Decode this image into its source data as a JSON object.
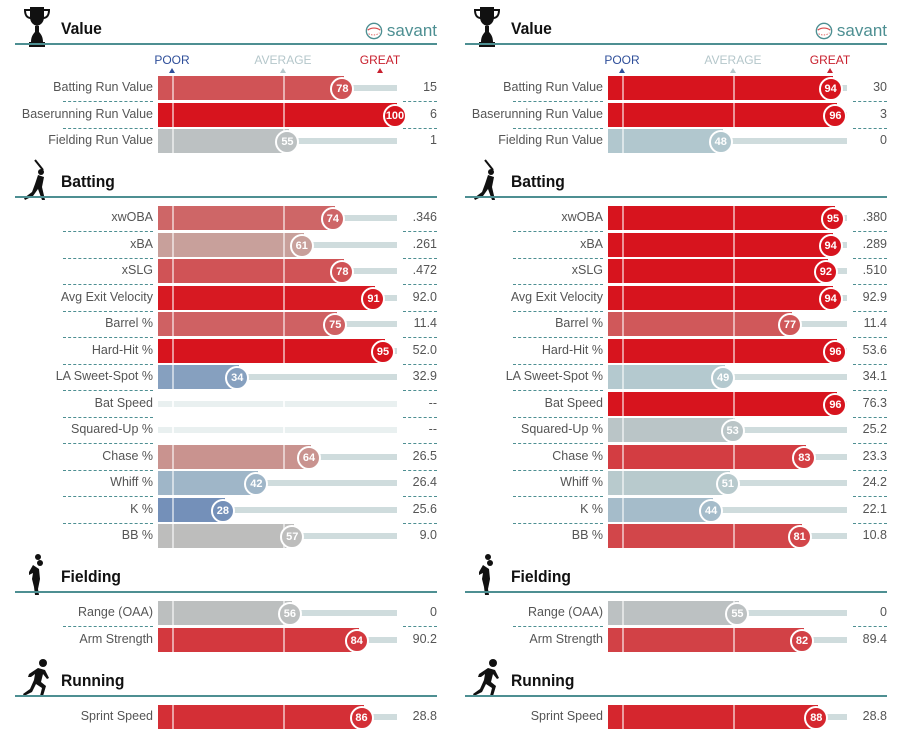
{
  "brand": "savant",
  "scale": {
    "poor": "POOR",
    "average": "AVERAGE",
    "great": "GREAT",
    "poor_color": "#2f4f9a",
    "average_color": "#b5c7cb",
    "great_color": "#c8202e"
  },
  "colors": {
    "accent_rule": "#4d8f92",
    "scale_low": "#3d5fa6",
    "scale_mid": "#b7ccd0",
    "scale_high": "#d7141e"
  },
  "panels": [
    {
      "sections": [
        {
          "title": "Value",
          "icon": "trophy-icon",
          "rows": [
            {
              "label": "Batting Run Value",
              "percentile": 78,
              "value": "15"
            },
            {
              "label": "Baserunning Run Value",
              "percentile": 100,
              "value": "6"
            },
            {
              "label": "Fielding Run Value",
              "percentile": 55,
              "value": "1"
            }
          ]
        },
        {
          "title": "Batting",
          "icon": "batter-icon",
          "rows": [
            {
              "label": "xwOBA",
              "percentile": 74,
              "value": ".346"
            },
            {
              "label": "xBA",
              "percentile": 61,
              "value": ".261"
            },
            {
              "label": "xSLG",
              "percentile": 78,
              "value": ".472"
            },
            {
              "label": "Avg Exit Velocity",
              "percentile": 91,
              "value": "92.0"
            },
            {
              "label": "Barrel %",
              "percentile": 75,
              "value": "11.4"
            },
            {
              "label": "Hard-Hit %",
              "percentile": 95,
              "value": "52.0"
            },
            {
              "label": "LA Sweet-Spot %",
              "percentile": 34,
              "value": "32.9"
            },
            {
              "label": "Bat Speed",
              "percentile": null,
              "value": "--"
            },
            {
              "label": "Squared-Up %",
              "percentile": null,
              "value": "--"
            },
            {
              "label": "Chase %",
              "percentile": 64,
              "value": "26.5"
            },
            {
              "label": "Whiff %",
              "percentile": 42,
              "value": "26.4"
            },
            {
              "label": "K %",
              "percentile": 28,
              "value": "25.6"
            },
            {
              "label": "BB %",
              "percentile": 57,
              "value": "9.0"
            }
          ]
        },
        {
          "title": "Fielding",
          "icon": "fielder-icon",
          "rows": [
            {
              "label": "Range (OAA)",
              "percentile": 56,
              "value": "0"
            },
            {
              "label": "Arm Strength",
              "percentile": 84,
              "value": "90.2"
            }
          ]
        },
        {
          "title": "Running",
          "icon": "runner-icon",
          "rows": [
            {
              "label": "Sprint Speed",
              "percentile": 86,
              "value": "28.8"
            }
          ]
        }
      ]
    },
    {
      "sections": [
        {
          "title": "Value",
          "icon": "trophy-icon",
          "rows": [
            {
              "label": "Batting Run Value",
              "percentile": 94,
              "value": "30"
            },
            {
              "label": "Baserunning Run Value",
              "percentile": 96,
              "value": "3"
            },
            {
              "label": "Fielding Run Value",
              "percentile": 48,
              "value": "0"
            }
          ]
        },
        {
          "title": "Batting",
          "icon": "batter-icon",
          "rows": [
            {
              "label": "xwOBA",
              "percentile": 95,
              "value": ".380"
            },
            {
              "label": "xBA",
              "percentile": 94,
              "value": ".289"
            },
            {
              "label": "xSLG",
              "percentile": 92,
              "value": ".510"
            },
            {
              "label": "Avg Exit Velocity",
              "percentile": 94,
              "value": "92.9"
            },
            {
              "label": "Barrel %",
              "percentile": 77,
              "value": "11.4"
            },
            {
              "label": "Hard-Hit %",
              "percentile": 96,
              "value": "53.6"
            },
            {
              "label": "LA Sweet-Spot %",
              "percentile": 49,
              "value": "34.1"
            },
            {
              "label": "Bat Speed",
              "percentile": 96,
              "value": "76.3"
            },
            {
              "label": "Squared-Up %",
              "percentile": 53,
              "value": "25.2"
            },
            {
              "label": "Chase %",
              "percentile": 83,
              "value": "23.3"
            },
            {
              "label": "Whiff %",
              "percentile": 51,
              "value": "24.2"
            },
            {
              "label": "K %",
              "percentile": 44,
              "value": "22.1"
            },
            {
              "label": "BB %",
              "percentile": 81,
              "value": "10.8"
            }
          ]
        },
        {
          "title": "Fielding",
          "icon": "fielder-icon",
          "rows": [
            {
              "label": "Range (OAA)",
              "percentile": 55,
              "value": "0"
            },
            {
              "label": "Arm Strength",
              "percentile": 82,
              "value": "89.4"
            }
          ]
        },
        {
          "title": "Running",
          "icon": "runner-icon",
          "rows": [
            {
              "label": "Sprint Speed",
              "percentile": 88,
              "value": "28.8"
            }
          ]
        }
      ]
    }
  ]
}
